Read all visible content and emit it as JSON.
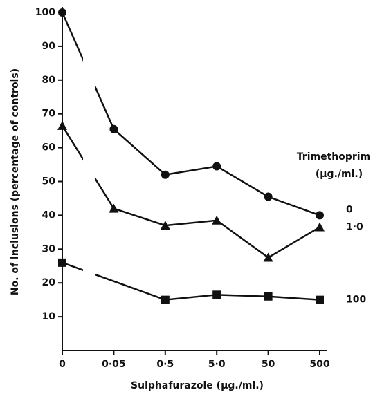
{
  "chart_data": {
    "type": "line",
    "x_label": "Sulphafurazole (µg./ml.)",
    "y_label": "No. of inclusions (percentage of controls)",
    "legend_title": [
      "Trimethoprim",
      "(µg./ml.)"
    ],
    "categories": [
      "0",
      "0·05",
      "0·5",
      "5·0",
      "50",
      "500"
    ],
    "series": [
      {
        "name": "0",
        "color": "#111111",
        "marker": "circle",
        "values": [
          100,
          65.5,
          52,
          54.5,
          45.5,
          40
        ]
      },
      {
        "name": "1·0",
        "color": "#111111",
        "marker": "triangle",
        "values": [
          66.5,
          42,
          37,
          38.5,
          27.5,
          36.5
        ]
      },
      {
        "name": "100",
        "color": "#111111",
        "marker": "square",
        "values": [
          26,
          null,
          15,
          16.5,
          16,
          15
        ]
      }
    ],
    "ylim": [
      0,
      100
    ],
    "yticks": [
      10,
      20,
      30,
      40,
      50,
      60,
      70,
      80,
      90,
      100
    ],
    "grid": false
  }
}
